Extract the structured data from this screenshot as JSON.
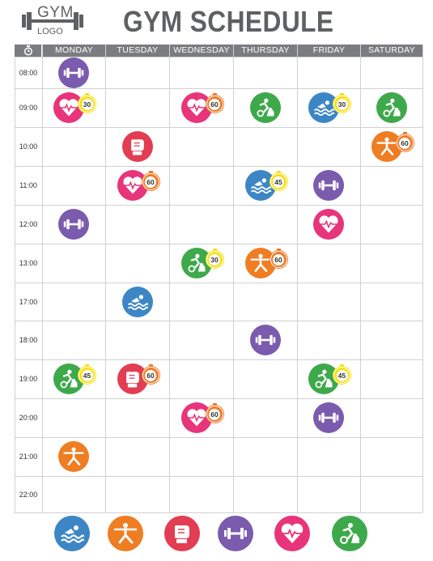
{
  "logo": {
    "line1": "GYM",
    "line2": "LOGO"
  },
  "title": "GYM SCHEDULE",
  "colors": {
    "swim": "#3d86c6",
    "yoga": "#ef7d22",
    "boxing": "#e23d52",
    "weights": "#7a5bad",
    "cardio": "#e8347a",
    "cycling": "#3ea94b",
    "header": "#7a7c7f",
    "badge_yellow": "#f7e017",
    "badge_orange": "#f07a27"
  },
  "header": {
    "clock_icon": "stopwatch-icon",
    "days": [
      "MONDAY",
      "TUESDAY",
      "WEDNESDAY",
      "THURSDAY",
      "FRIDAY",
      "SATURDAY"
    ]
  },
  "times": [
    "08:00",
    "09:00",
    "10:00",
    "11:00",
    "12:00",
    "13:00",
    "17:00",
    "18:00",
    "19:00",
    "20:00",
    "21:00",
    "22:00"
  ],
  "sessions": [
    {
      "time": "08:00",
      "day": "MONDAY",
      "activity": "weights",
      "duration": ""
    },
    {
      "time": "09:00",
      "day": "MONDAY",
      "activity": "cardio",
      "duration": "30",
      "badge": "yellow"
    },
    {
      "time": "09:00",
      "day": "WEDNESDAY",
      "activity": "cardio",
      "duration": "60",
      "badge": "orange"
    },
    {
      "time": "09:00",
      "day": "THURSDAY",
      "activity": "cycling",
      "duration": ""
    },
    {
      "time": "09:00",
      "day": "FRIDAY",
      "activity": "swim",
      "duration": "30",
      "badge": "yellow"
    },
    {
      "time": "09:00",
      "day": "SATURDAY",
      "activity": "cycling",
      "duration": ""
    },
    {
      "time": "10:00",
      "day": "TUESDAY",
      "activity": "boxing",
      "duration": ""
    },
    {
      "time": "10:00",
      "day": "SATURDAY",
      "activity": "yoga",
      "duration": "60",
      "badge": "orange"
    },
    {
      "time": "11:00",
      "day": "TUESDAY",
      "activity": "cardio",
      "duration": "60",
      "badge": "orange"
    },
    {
      "time": "11:00",
      "day": "THURSDAY",
      "activity": "swim",
      "duration": "45",
      "badge": "yellow"
    },
    {
      "time": "11:00",
      "day": "FRIDAY",
      "activity": "weights",
      "duration": ""
    },
    {
      "time": "12:00",
      "day": "MONDAY",
      "activity": "weights",
      "duration": ""
    },
    {
      "time": "12:00",
      "day": "FRIDAY",
      "activity": "cardio",
      "duration": ""
    },
    {
      "time": "13:00",
      "day": "WEDNESDAY",
      "activity": "cycling",
      "duration": "30",
      "badge": "yellow"
    },
    {
      "time": "13:00",
      "day": "THURSDAY",
      "activity": "yoga",
      "duration": "60",
      "badge": "orange"
    },
    {
      "time": "17:00",
      "day": "TUESDAY",
      "activity": "swim",
      "duration": ""
    },
    {
      "time": "18:00",
      "day": "THURSDAY",
      "activity": "weights",
      "duration": ""
    },
    {
      "time": "19:00",
      "day": "MONDAY",
      "activity": "cycling",
      "duration": "45",
      "badge": "yellow"
    },
    {
      "time": "19:00",
      "day": "TUESDAY",
      "activity": "boxing",
      "duration": "60",
      "badge": "orange"
    },
    {
      "time": "19:00",
      "day": "FRIDAY",
      "activity": "cycling",
      "duration": "45",
      "badge": "yellow"
    },
    {
      "time": "20:00",
      "day": "WEDNESDAY",
      "activity": "cardio",
      "duration": "60",
      "badge": "orange"
    },
    {
      "time": "20:00",
      "day": "FRIDAY",
      "activity": "weights",
      "duration": ""
    },
    {
      "time": "21:00",
      "day": "MONDAY",
      "activity": "yoga",
      "duration": ""
    }
  ],
  "legend": [
    "swim",
    "yoga",
    "boxing",
    "weights",
    "cardio",
    "cycling"
  ]
}
